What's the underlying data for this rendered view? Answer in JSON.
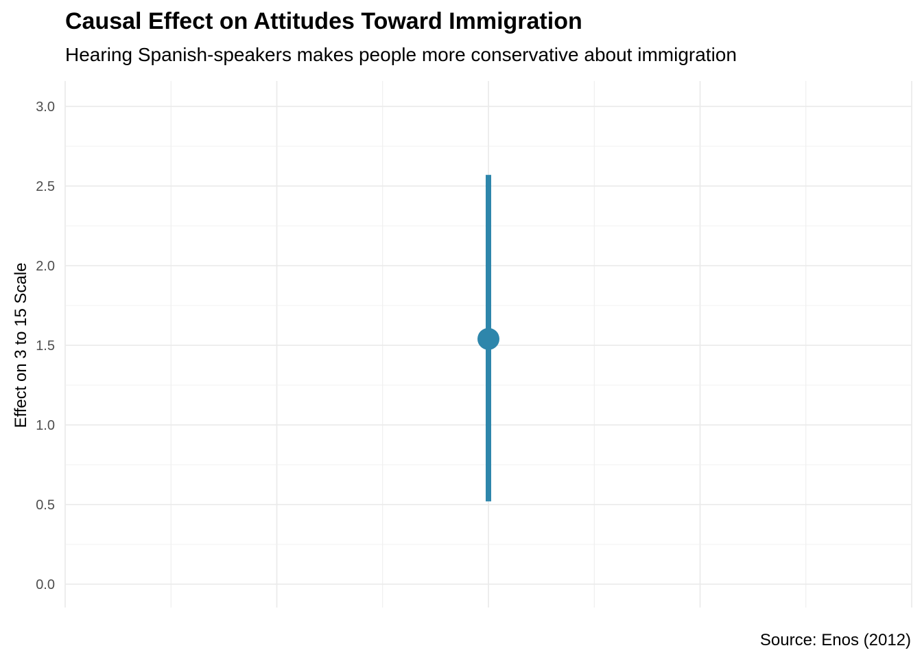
{
  "chart_data": {
    "type": "pointrange",
    "title": "Causal Effect on Attitudes Toward Immigration",
    "subtitle": "Hearing Spanish-speakers makes people more conservative about immigration",
    "caption": "Source: Enos (2012)",
    "xlabel": "",
    "ylabel": "Effect on 3 to 15 Scale",
    "ylim": [
      -0.15,
      3.08
    ],
    "yticks": [
      "0.0",
      "0.5",
      "1.0",
      "1.5",
      "2.0",
      "2.5",
      "3.0"
    ],
    "grid": true,
    "legend": "none",
    "points": [
      {
        "estimate": 1.54,
        "lower": 0.52,
        "upper": 2.57
      }
    ],
    "color": "#2E86AB"
  }
}
